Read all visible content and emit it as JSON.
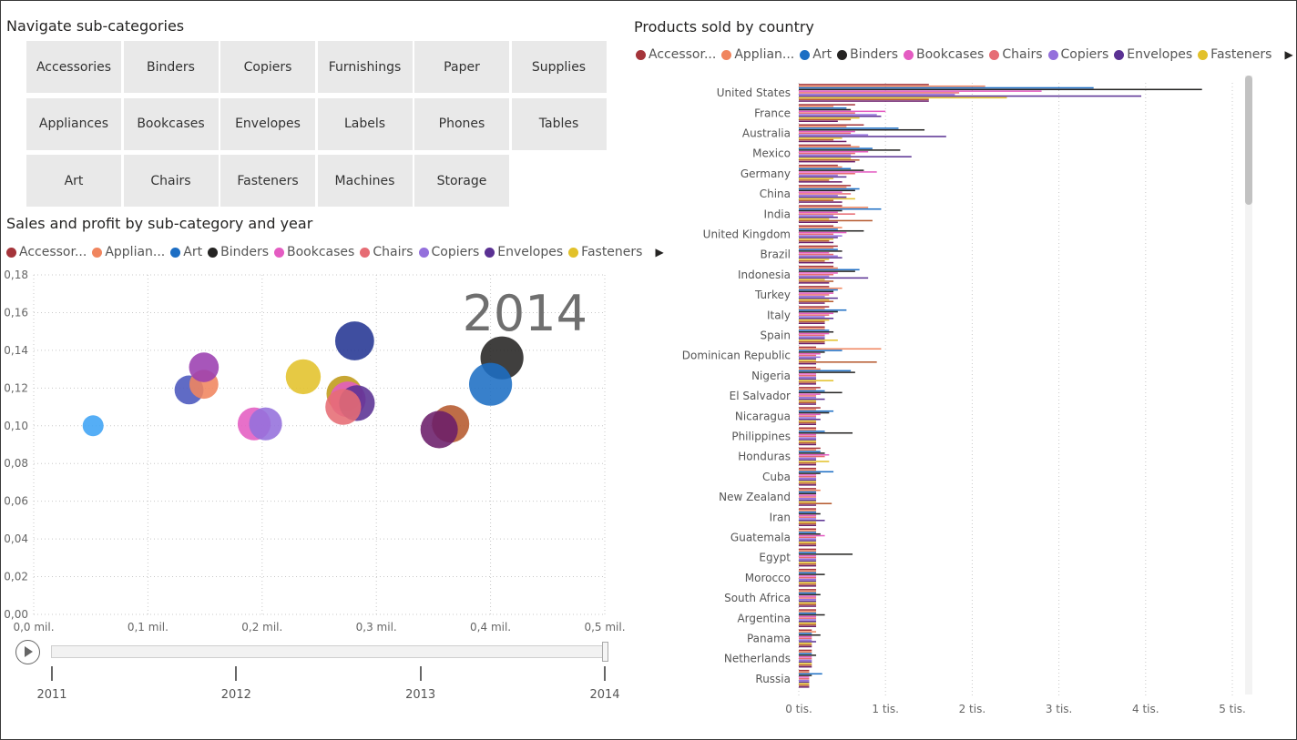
{
  "nav": {
    "title": "Navigate sub-categories",
    "buttons": [
      "Accessories",
      "Binders",
      "Copiers",
      "Furnishings",
      "Paper",
      "Supplies",
      "Appliances",
      "Bookcases",
      "Envelopes",
      "Labels",
      "Phones",
      "Tables",
      "Art",
      "Chairs",
      "Fasteners",
      "Machines",
      "Storage"
    ]
  },
  "legend": [
    {
      "label": "Accessor...",
      "color": "#a4343a"
    },
    {
      "label": "Applian...",
      "color": "#f0855e"
    },
    {
      "label": "Art",
      "color": "#1c6ec4"
    },
    {
      "label": "Binders",
      "color": "#252423"
    },
    {
      "label": "Bookcases",
      "color": "#e45cc2"
    },
    {
      "label": "Chairs",
      "color": "#e66c74"
    },
    {
      "label": "Copiers",
      "color": "#9470dc"
    },
    {
      "label": "Envelopes",
      "color": "#5a3193"
    },
    {
      "label": "Fasteners",
      "color": "#e2c12a"
    }
  ],
  "bubble": {
    "title": "Sales and profit by sub-category and year",
    "year_watermark": "2014"
  },
  "bar": {
    "title": "Products sold by country"
  },
  "play_axis": {
    "years": [
      "2011",
      "2012",
      "2013",
      "2014"
    ],
    "current_index": 3
  },
  "chart_data": [
    {
      "type": "scatter",
      "title": "Sales and profit by sub-category and year",
      "x_range": [
        0,
        0.5
      ],
      "y_range": [
        0,
        0.18
      ],
      "x_ticks": [
        "0,0 mil.",
        "0,1 mil.",
        "0,2 mil.",
        "0,3 mil.",
        "0,4 mil.",
        "0,5 mil."
      ],
      "y_ticks": [
        "0,00",
        "0,02",
        "0,04",
        "0,06",
        "0,08",
        "0,10",
        "0,12",
        "0,14",
        "0,16",
        "0,18"
      ],
      "grid": true,
      "points": [
        {
          "x": 0.052,
          "y": 0.1,
          "size": 0.25,
          "color": "#3ea3f5"
        },
        {
          "x": 0.136,
          "y": 0.119,
          "size": 0.45,
          "color": "#4a57bd"
        },
        {
          "x": 0.149,
          "y": 0.122,
          "size": 0.45,
          "color": "#f0855e"
        },
        {
          "x": 0.149,
          "y": 0.131,
          "size": 0.47,
          "color": "#9b3fb0"
        },
        {
          "x": 0.193,
          "y": 0.101,
          "size": 0.55,
          "color": "#e45cc2"
        },
        {
          "x": 0.203,
          "y": 0.101,
          "size": 0.55,
          "color": "#9470dc"
        },
        {
          "x": 0.236,
          "y": 0.126,
          "size": 0.6,
          "color": "#e2c12a"
        },
        {
          "x": 0.272,
          "y": 0.117,
          "size": 0.62,
          "color": "#bf9a17"
        },
        {
          "x": 0.275,
          "y": 0.114,
          "size": 0.62,
          "color": "#e45cc2"
        },
        {
          "x": 0.283,
          "y": 0.112,
          "size": 0.62,
          "color": "#5a3193"
        },
        {
          "x": 0.271,
          "y": 0.11,
          "size": 0.62,
          "color": "#e66c74"
        },
        {
          "x": 0.281,
          "y": 0.145,
          "size": 0.7,
          "color": "#243593"
        },
        {
          "x": 0.365,
          "y": 0.101,
          "size": 0.66,
          "color": "#b5592e"
        },
        {
          "x": 0.355,
          "y": 0.098,
          "size": 0.66,
          "color": "#6b1e6a"
        },
        {
          "x": 0.41,
          "y": 0.136,
          "size": 0.8,
          "color": "#252423"
        },
        {
          "x": 0.4,
          "y": 0.122,
          "size": 0.8,
          "color": "#1c6ec4"
        }
      ]
    },
    {
      "type": "bar",
      "title": "Products sold by country",
      "orientation": "horizontal",
      "x_range": [
        0,
        5000
      ],
      "x_ticks": [
        "0 tis.",
        "1 tis.",
        "2 tis.",
        "3 tis.",
        "4 tis.",
        "5 tis."
      ],
      "categories": [
        "United States",
        "France",
        "Australia",
        "Mexico",
        "Germany",
        "China",
        "India",
        "United Kingdom",
        "Brazil",
        "Indonesia",
        "Turkey",
        "Italy",
        "Spain",
        "Dominican Republic",
        "Nigeria",
        "El Salvador",
        "Nicaragua",
        "Philippines",
        "Honduras",
        "Cuba",
        "New Zealand",
        "Iran",
        "Guatemala",
        "Egypt",
        "Morocco",
        "South Africa",
        "Argentina",
        "Panama",
        "Netherlands",
        "Russia"
      ],
      "series_colors": [
        "#a4343a",
        "#f0855e",
        "#1c6ec4",
        "#252423",
        "#e45cc2",
        "#e66c74",
        "#9470dc",
        "#5a3193",
        "#e2c12a",
        "#b5592e",
        "#6b1e6a"
      ],
      "series_values": [
        [
          1500,
          2150,
          3400,
          4650,
          2800,
          1850,
          1800,
          3950,
          2400,
          1500,
          1500
        ],
        [
          650,
          400,
          550,
          600,
          1000,
          650,
          900,
          950,
          700,
          600,
          450
        ],
        [
          750,
          550,
          1150,
          1450,
          650,
          600,
          800,
          1700,
          500,
          400,
          550
        ],
        [
          600,
          700,
          850,
          1170,
          800,
          650,
          600,
          1300,
          600,
          700,
          650
        ],
        [
          450,
          500,
          600,
          750,
          900,
          650,
          450,
          550,
          400,
          350,
          500
        ],
        [
          600,
          550,
          700,
          650,
          500,
          600,
          450,
          550,
          650,
          400,
          500
        ],
        [
          500,
          800,
          950,
          500,
          450,
          650,
          400,
          450,
          350,
          850,
          450
        ],
        [
          400,
          500,
          450,
          750,
          550,
          400,
          500,
          450,
          400,
          350,
          400
        ],
        [
          450,
          400,
          450,
          500,
          350,
          400,
          450,
          500,
          350,
          300,
          400
        ],
        [
          400,
          450,
          700,
          650,
          450,
          400,
          350,
          800,
          300,
          400,
          350
        ],
        [
          350,
          500,
          450,
          400,
          400,
          350,
          300,
          450,
          350,
          400,
          300
        ],
        [
          350,
          300,
          550,
          450,
          400,
          350,
          300,
          400,
          350,
          300,
          300
        ],
        [
          300,
          300,
          350,
          400,
          350,
          300,
          300,
          300,
          450,
          300,
          300
        ],
        [
          200,
          950,
          500,
          300,
          250,
          200,
          250,
          200,
          200,
          900,
          200
        ],
        [
          200,
          250,
          600,
          650,
          200,
          200,
          200,
          200,
          400,
          200,
          200
        ],
        [
          250,
          200,
          300,
          500,
          250,
          200,
          200,
          300,
          200,
          200,
          200
        ],
        [
          250,
          200,
          400,
          350,
          250,
          200,
          200,
          250,
          200,
          200,
          200
        ],
        [
          200,
          200,
          300,
          620,
          200,
          200,
          200,
          200,
          200,
          200,
          200
        ],
        [
          250,
          200,
          250,
          300,
          350,
          300,
          200,
          200,
          350,
          200,
          200
        ],
        [
          200,
          200,
          400,
          250,
          200,
          200,
          200,
          200,
          200,
          200,
          200
        ],
        [
          200,
          250,
          200,
          200,
          200,
          200,
          200,
          200,
          200,
          380,
          200
        ],
        [
          200,
          200,
          200,
          250,
          200,
          200,
          200,
          300,
          200,
          200,
          200
        ],
        [
          200,
          200,
          200,
          250,
          300,
          200,
          200,
          200,
          200,
          200,
          200
        ],
        [
          200,
          200,
          200,
          620,
          200,
          200,
          200,
          200,
          200,
          200,
          200
        ],
        [
          200,
          200,
          200,
          300,
          200,
          200,
          200,
          200,
          200,
          200,
          200
        ],
        [
          200,
          200,
          200,
          250,
          200,
          200,
          200,
          200,
          200,
          200,
          200
        ],
        [
          200,
          200,
          200,
          300,
          200,
          200,
          200,
          200,
          200,
          200,
          200
        ],
        [
          150,
          200,
          150,
          250,
          150,
          150,
          150,
          200,
          150,
          150,
          150
        ],
        [
          150,
          150,
          150,
          200,
          150,
          150,
          150,
          150,
          150,
          150,
          150
        ],
        [
          120,
          120,
          270,
          150,
          120,
          120,
          120,
          120,
          120,
          120,
          120
        ]
      ],
      "grid": true
    }
  ]
}
